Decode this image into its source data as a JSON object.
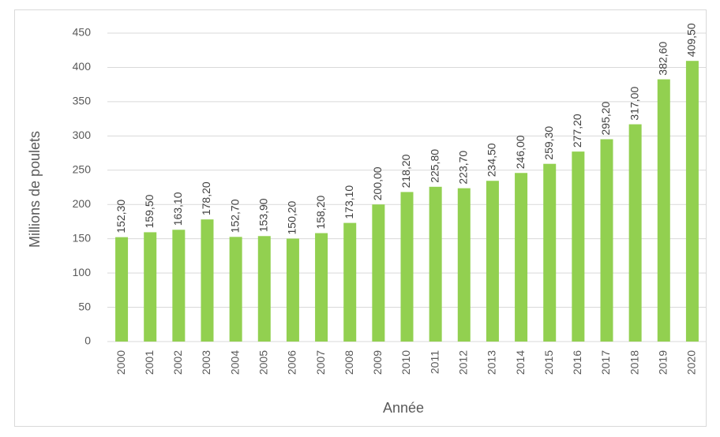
{
  "chart_data": {
    "type": "bar",
    "x_label": "Année",
    "y_label": "Millions de poulets",
    "categories": [
      "2000",
      "2001",
      "2002",
      "2003",
      "2004",
      "2005",
      "2006",
      "2007",
      "2008",
      "2009",
      "2010",
      "2011",
      "2012",
      "2013",
      "2014",
      "2015",
      "2016",
      "2017",
      "2018",
      "2019",
      "2020"
    ],
    "values": [
      152.3,
      159.5,
      163.1,
      178.2,
      152.7,
      153.9,
      150.2,
      158.2,
      173.1,
      200,
      218.2,
      225.8,
      223.7,
      234.5,
      246,
      259.3,
      277.2,
      295.2,
      317,
      382.6,
      409.5
    ],
    "value_labels": [
      "152,30",
      "159,50",
      "163,10",
      "178,20",
      "152,70",
      "153,90",
      "150,20",
      "158,20",
      "173,10",
      "200,00",
      "218,20",
      "225,80",
      "223,70",
      "234,50",
      "246,00",
      "259,30",
      "277,20",
      "295,20",
      "317,00",
      "382,60",
      "409,50"
    ],
    "color": "#92d050",
    "ylim": [
      0,
      450
    ],
    "yticks": [
      0,
      50,
      100,
      150,
      200,
      250,
      300,
      350,
      400,
      450
    ],
    "grid": true
  }
}
